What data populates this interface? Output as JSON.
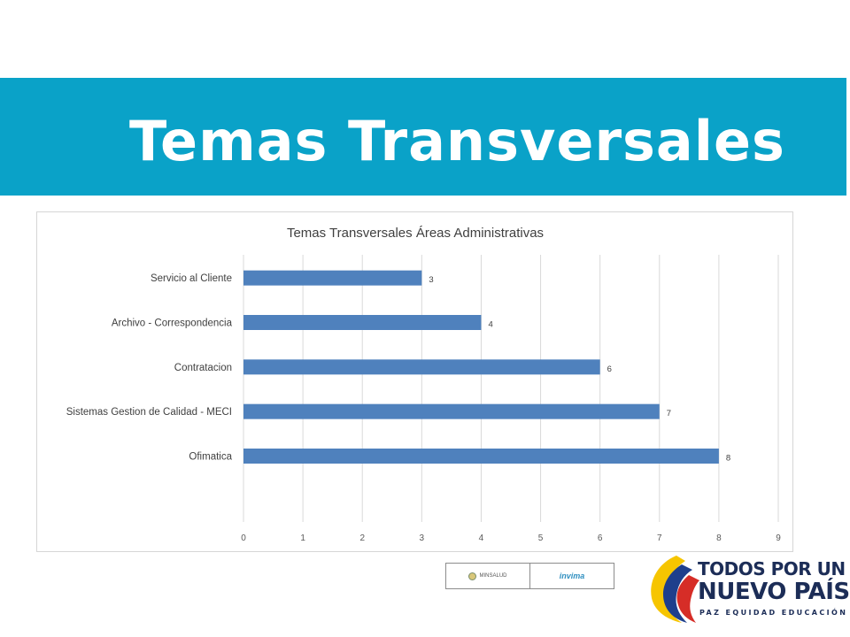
{
  "slide": {
    "title": "Temas Transversales",
    "banner_color": "#0aa2c8"
  },
  "logos": {
    "left_box": {
      "ministry": "MINSALUD",
      "agency": "invima"
    },
    "government": {
      "line1": "TODOS POR UN",
      "line2": "NUEVO PAÍS",
      "line3": "PAZ  EQUIDAD  EDUCACIÓN",
      "colors": [
        "#f6c500",
        "#1e3f8c",
        "#d62d27"
      ]
    }
  },
  "chart_data": {
    "type": "bar",
    "orientation": "horizontal",
    "title": "Temas Transversales Áreas Administrativas",
    "categories": [
      "Servicio al Cliente",
      "Archivo - Correspondencia",
      "Contratacion",
      "Sistemas Gestion de Calidad - MECI",
      "Ofimatica"
    ],
    "values": [
      3,
      4,
      6,
      7,
      8
    ],
    "xlim": [
      0,
      9
    ],
    "x_ticks": [
      "0",
      "1",
      "2",
      "3",
      "4",
      "5",
      "6",
      "7",
      "8",
      "9"
    ],
    "bar_color": "#4f81bd",
    "grid": true,
    "data_labels": true,
    "legend": "none"
  }
}
